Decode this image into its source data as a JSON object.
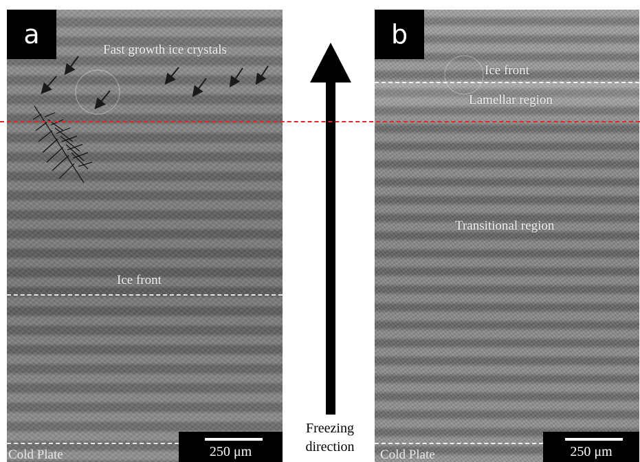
{
  "panel_a": {
    "letter": "a",
    "top_label": "Fast growth ice crystals",
    "ice_front": "Ice front",
    "cold_plate": "Cold Plate",
    "scale": "250 μm"
  },
  "panel_b": {
    "letter": "b",
    "ice_front": "Ice front",
    "lamellar": "Lamellar region",
    "transitional": "Transitional region",
    "cold_plate": "Cold Plate",
    "scale": "250 μm"
  },
  "arrow": {
    "line1": "Freezing",
    "line2": "direction"
  },
  "colors": {
    "reference_line": "#e8252a",
    "arrow": "#000000"
  },
  "icons": [
    "arrow-up-icon",
    "crystal-arrow-icon",
    "feather-sketch-icon"
  ]
}
